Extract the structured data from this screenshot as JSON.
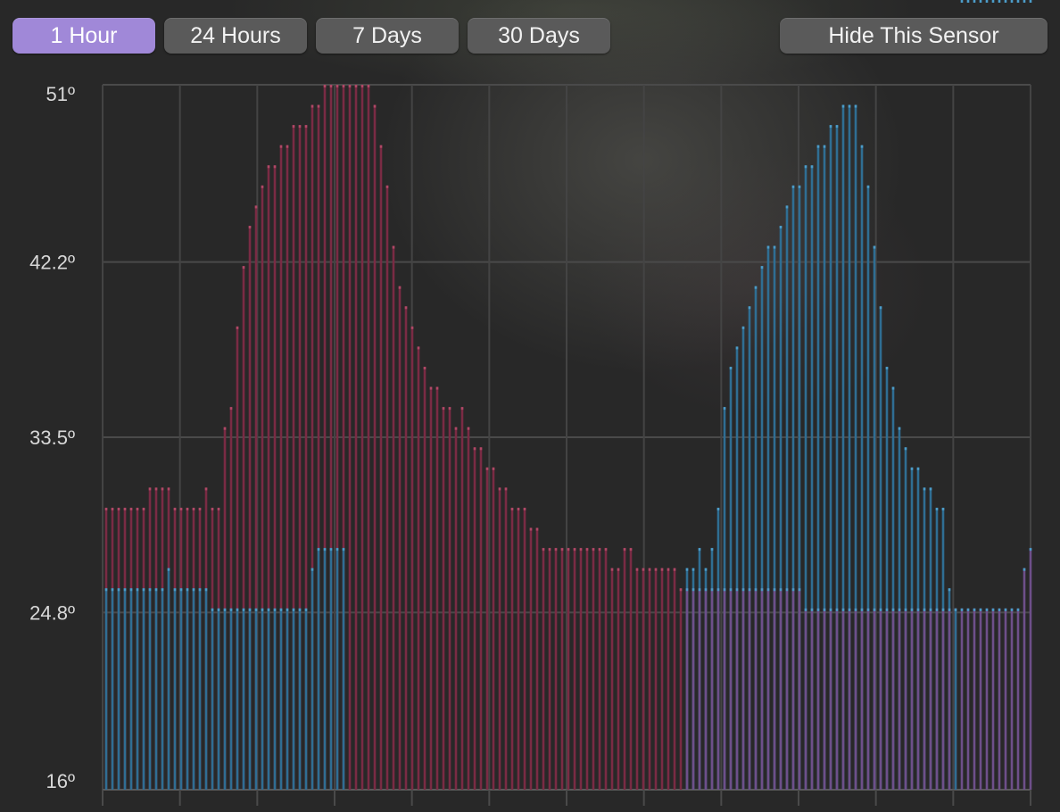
{
  "toolbar": {
    "range_buttons": [
      "1 Hour",
      "24 Hours",
      "7 Days",
      "30 Days"
    ],
    "selected_range": "1 Hour",
    "hide_label": "Hide This Sensor"
  },
  "colors": {
    "selected_button": "#a088d8",
    "button": "#5a5a5a",
    "series_red": "#7a2b44",
    "series_blue": "#2f6e93",
    "overlap": "#6e4f8a"
  },
  "chart_data": {
    "type": "bar",
    "ylim": [
      16,
      51
    ],
    "yticks": [
      "51º",
      "42.2º",
      "33.5º",
      "24.8º",
      "16º"
    ],
    "ytick_values": [
      51,
      42.2,
      33.5,
      24.8,
      16
    ],
    "grid": true,
    "series": [
      {
        "values": [
          30,
          30,
          30,
          30,
          30,
          30,
          30,
          31,
          31,
          31,
          31,
          30,
          30,
          30,
          30,
          30,
          31,
          30,
          30,
          34,
          35,
          39,
          42,
          44,
          45,
          46,
          47,
          47,
          48,
          48,
          49,
          49,
          49,
          50,
          50,
          51,
          51,
          51,
          51,
          51,
          51,
          51,
          51,
          50,
          48,
          46,
          43,
          41,
          40,
          39,
          38,
          37,
          36,
          36,
          35,
          35,
          34,
          35,
          34,
          33,
          33,
          32,
          32,
          31,
          31,
          30,
          30,
          30,
          29,
          29,
          28,
          28,
          28,
          28,
          28,
          28,
          28,
          28,
          28,
          28,
          28,
          27,
          27,
          28,
          28,
          27,
          27,
          27,
          27,
          27,
          27,
          27,
          26,
          26,
          26,
          26,
          26,
          26,
          26,
          26,
          26,
          26,
          26,
          26,
          26,
          26,
          26,
          26,
          26,
          26,
          26,
          26,
          25,
          25,
          25,
          25,
          25,
          25,
          25,
          25,
          25,
          25,
          25,
          25,
          25,
          25,
          25,
          25,
          25,
          25,
          25,
          25,
          25,
          25,
          25,
          25,
          25,
          25,
          25,
          25,
          25,
          25,
          25,
          25,
          25,
          25,
          25,
          27,
          28
        ]
      },
      {
        "values": [
          26,
          26,
          26,
          26,
          26,
          26,
          26,
          26,
          26,
          26,
          27,
          26,
          26,
          26,
          26,
          26,
          26,
          25,
          25,
          25,
          25,
          25,
          25,
          25,
          25,
          25,
          25,
          25,
          25,
          25,
          25,
          25,
          25,
          27,
          28,
          28,
          28,
          28,
          28,
          16,
          16,
          16,
          16,
          16,
          16,
          16,
          16,
          16,
          16,
          16,
          16,
          16,
          16,
          16,
          16,
          16,
          16,
          16,
          16,
          16,
          16,
          16,
          16,
          16,
          16,
          16,
          16,
          16,
          16,
          16,
          16,
          16,
          16,
          16,
          16,
          16,
          16,
          16,
          16,
          16,
          16,
          16,
          16,
          16,
          16,
          16,
          16,
          16,
          16,
          16,
          16,
          16,
          16,
          27,
          27,
          28,
          27,
          28,
          30,
          35,
          37,
          38,
          39,
          40,
          41,
          42,
          43,
          43,
          44,
          45,
          46,
          46,
          47,
          47,
          48,
          48,
          49,
          49,
          50,
          50,
          50,
          48,
          46,
          43,
          40,
          37,
          36,
          34,
          33,
          32,
          32,
          31,
          31,
          30,
          30,
          26,
          25
        ]
      }
    ]
  }
}
